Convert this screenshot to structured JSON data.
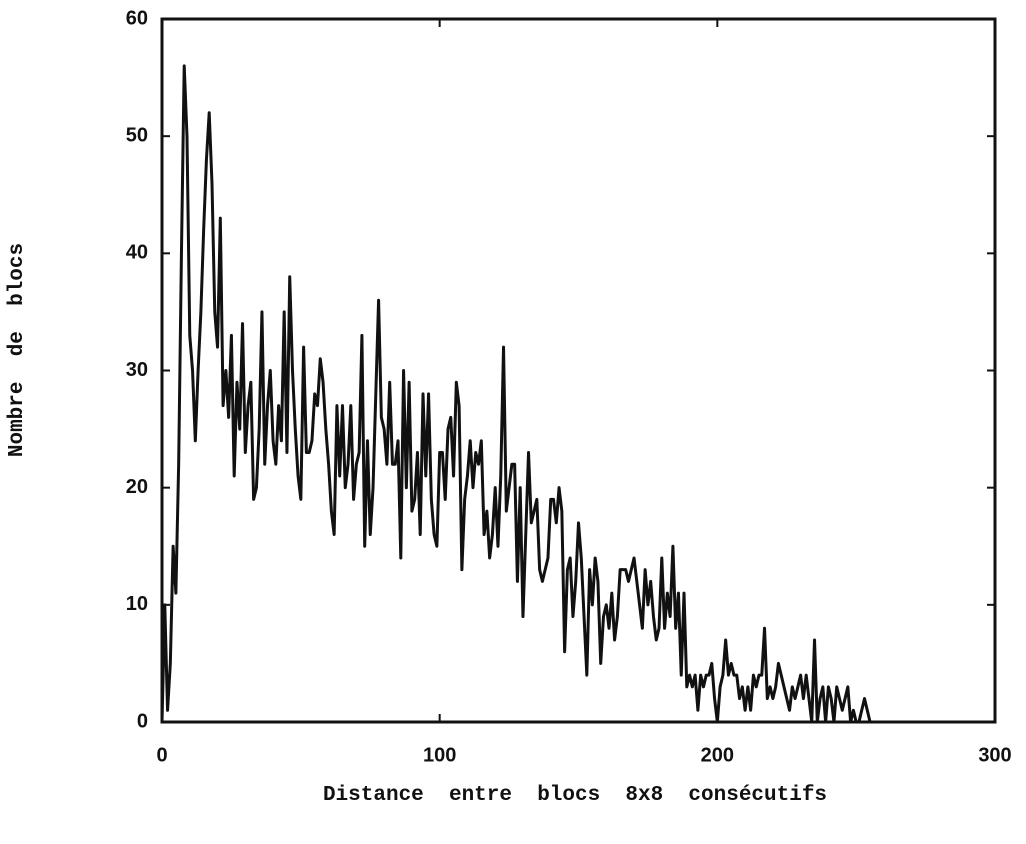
{
  "chart_data": {
    "type": "line",
    "xlabel": "Distance  entre  blocs  8x8  consécutifs",
    "ylabel": "Nombre  de  blocs",
    "color": "#111111",
    "xlim": [
      0,
      300
    ],
    "xticks": [
      0,
      100,
      200,
      300
    ],
    "ylim": [
      0,
      60
    ],
    "yticks": [
      0,
      10,
      20,
      30,
      40,
      50,
      60
    ],
    "grid": false,
    "x": [
      0,
      1,
      2,
      3,
      4,
      5,
      6,
      7,
      8,
      9,
      10,
      11,
      12,
      13,
      14,
      15,
      16,
      17,
      18,
      19,
      20,
      21,
      22,
      23,
      24,
      25,
      26,
      27,
      28,
      29,
      30,
      31,
      32,
      33,
      34,
      35,
      36,
      37,
      38,
      39,
      40,
      41,
      42,
      43,
      44,
      45,
      46,
      47,
      48,
      49,
      50,
      51,
      52,
      53,
      54,
      55,
      56,
      57,
      58,
      59,
      60,
      61,
      62,
      63,
      64,
      65,
      66,
      67,
      68,
      69,
      70,
      71,
      72,
      73,
      74,
      75,
      76,
      77,
      78,
      79,
      80,
      81,
      82,
      83,
      84,
      85,
      86,
      87,
      88,
      89,
      90,
      91,
      92,
      93,
      94,
      95,
      96,
      97,
      98,
      99,
      100,
      101,
      102,
      103,
      104,
      105,
      106,
      107,
      108,
      109,
      110,
      111,
      112,
      113,
      114,
      115,
      116,
      117,
      118,
      119,
      120,
      121,
      122,
      123,
      124,
      125,
      126,
      127,
      128,
      129,
      130,
      131,
      132,
      133,
      134,
      135,
      136,
      137,
      138,
      139,
      140,
      141,
      142,
      143,
      144,
      145,
      146,
      147,
      148,
      149,
      150,
      151,
      152,
      153,
      154,
      155,
      156,
      157,
      158,
      159,
      160,
      161,
      162,
      163,
      164,
      165,
      166,
      167,
      168,
      169,
      170,
      171,
      172,
      173,
      174,
      175,
      176,
      177,
      178,
      179,
      180,
      181,
      182,
      183,
      184,
      185,
      186,
      187,
      188,
      189,
      190,
      191,
      192,
      193,
      194,
      195,
      196,
      197,
      198,
      199,
      200,
      201,
      202,
      203,
      204,
      205,
      206,
      207,
      208,
      209,
      210,
      211,
      212,
      213,
      214,
      215,
      216,
      217,
      218,
      219,
      220,
      221,
      222,
      223,
      224,
      225,
      226,
      227,
      228,
      229,
      230,
      231,
      232,
      233,
      234,
      235,
      236,
      237,
      238,
      239,
      240,
      241,
      242,
      243,
      244,
      245,
      246,
      247,
      248,
      249,
      250,
      251,
      252,
      253,
      254,
      255
    ],
    "values": [
      0,
      10,
      1,
      5,
      15,
      11,
      22,
      40,
      56,
      50,
      33,
      30,
      24,
      30,
      35,
      42,
      48,
      52,
      46,
      35,
      32,
      43,
      27,
      30,
      26,
      33,
      21,
      29,
      25,
      34,
      23,
      27,
      29,
      19,
      20,
      25,
      35,
      22,
      27,
      30,
      24,
      22,
      27,
      24,
      35,
      23,
      38,
      30,
      25,
      21,
      19,
      32,
      23,
      23,
      24,
      28,
      27,
      31,
      29,
      25,
      22,
      18,
      16,
      27,
      21,
      27,
      20,
      22,
      27,
      19,
      22,
      23,
      33,
      15,
      24,
      16,
      20,
      28,
      36,
      26,
      25,
      22,
      29,
      22,
      22,
      24,
      14,
      30,
      20,
      29,
      18,
      19,
      23,
      16,
      28,
      21,
      28,
      19,
      16,
      15,
      23,
      23,
      19,
      25,
      26,
      21,
      29,
      27,
      13,
      19,
      21,
      24,
      20,
      23,
      22,
      24,
      16,
      18,
      14,
      16,
      20,
      15,
      21,
      32,
      18,
      20,
      22,
      22,
      12,
      20,
      9,
      16,
      23,
      17,
      18,
      19,
      13,
      12,
      13,
      14,
      19,
      19,
      17,
      20,
      18,
      6,
      13,
      14,
      9,
      12,
      17,
      14,
      9,
      4,
      13,
      10,
      14,
      12,
      5,
      9,
      10,
      8,
      11,
      7,
      9,
      13,
      13,
      13,
      12,
      13,
      14,
      12,
      10,
      8,
      13,
      10,
      12,
      9,
      7,
      8,
      14,
      8,
      11,
      9,
      15,
      8,
      11,
      4,
      11,
      3,
      4,
      3,
      4,
      1,
      4,
      3,
      4,
      4,
      5,
      2,
      0,
      3,
      4,
      7,
      4,
      5,
      4,
      4,
      2,
      3,
      1,
      3,
      1,
      4,
      3,
      4,
      4,
      8,
      2,
      3,
      2,
      3,
      5,
      4,
      3,
      2,
      1,
      3,
      2,
      3,
      4,
      2,
      4,
      2,
      0,
      7,
      0,
      2,
      3,
      0,
      3,
      2,
      0,
      3,
      2,
      1,
      2,
      3,
      0,
      1,
      0,
      0,
      1,
      2,
      1,
      0
    ]
  }
}
